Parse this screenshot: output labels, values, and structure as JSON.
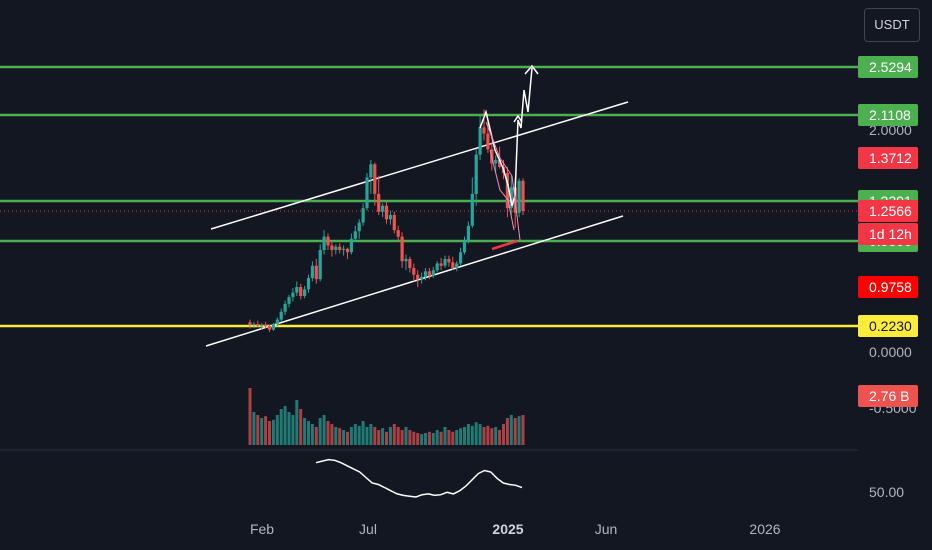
{
  "currency_button": {
    "label": "USDT"
  },
  "chart_data": {
    "type": "candlestick",
    "price_axis": {
      "tick_labels": [
        "2.0000",
        "0.5000",
        "0.0000",
        "-0.5000"
      ],
      "secondary_labels": [
        "50.00"
      ]
    },
    "time_axis": {
      "labels": [
        {
          "text": "Feb",
          "bold": false
        },
        {
          "text": "Jul",
          "bold": false
        },
        {
          "text": "2025",
          "bold": true
        },
        {
          "text": "Jun",
          "bold": false
        },
        {
          "text": "2026",
          "bold": false
        }
      ]
    },
    "horizontal_levels": [
      {
        "value": 2.5294,
        "label": "2.5294",
        "color": "#4caf50"
      },
      {
        "value": 2.1108,
        "label": "2.1108",
        "color": "#4caf50"
      },
      {
        "value": 1.3391,
        "label": "1.3391",
        "color": "#4caf50"
      },
      {
        "value": 0.98,
        "label": "0.9800",
        "color": "#4caf50"
      },
      {
        "value": 0.223,
        "label": "0.2230",
        "color": "#ffeb3b"
      }
    ],
    "badges": [
      {
        "label": "1.3712",
        "color": "#f23645"
      },
      {
        "label": "1.2566",
        "color": "#f23645"
      },
      {
        "label": "1d 12h",
        "color": "#f23645"
      },
      {
        "label": "0.9758",
        "color": "#ff0000"
      },
      {
        "label": "2.76 B",
        "color": "#ef5350"
      }
    ],
    "current_price": 1.2566,
    "colors": {
      "up": "#26a69a",
      "down": "#ef5350",
      "channel": "#ffffff",
      "rsi": "#ffffff"
    },
    "candles": [
      [
        0.255,
        0.28,
        0.2,
        0.235
      ],
      [
        0.235,
        0.26,
        0.205,
        0.24
      ],
      [
        0.24,
        0.27,
        0.215,
        0.225
      ],
      [
        0.225,
        0.25,
        0.195,
        0.23
      ],
      [
        0.23,
        0.26,
        0.2,
        0.225
      ],
      [
        0.225,
        0.235,
        0.17,
        0.19
      ],
      [
        0.19,
        0.25,
        0.18,
        0.24
      ],
      [
        0.24,
        0.3,
        0.22,
        0.28
      ],
      [
        0.28,
        0.38,
        0.26,
        0.35
      ],
      [
        0.35,
        0.45,
        0.32,
        0.42
      ],
      [
        0.42,
        0.5,
        0.39,
        0.48
      ],
      [
        0.48,
        0.56,
        0.44,
        0.52
      ],
      [
        0.52,
        0.62,
        0.49,
        0.57
      ],
      [
        0.57,
        0.6,
        0.46,
        0.49
      ],
      [
        0.49,
        0.58,
        0.47,
        0.55
      ],
      [
        0.55,
        0.68,
        0.52,
        0.65
      ],
      [
        0.65,
        0.8,
        0.62,
        0.76
      ],
      [
        0.76,
        0.82,
        0.6,
        0.64
      ],
      [
        0.64,
        0.95,
        0.62,
        0.9
      ],
      [
        0.9,
        1.08,
        0.86,
        1.02
      ],
      [
        1.02,
        1.05,
        0.9,
        0.94
      ],
      [
        0.94,
        0.98,
        0.84,
        0.9
      ],
      [
        0.9,
        0.95,
        0.86,
        0.93
      ],
      [
        0.93,
        0.96,
        0.87,
        0.9
      ],
      [
        0.9,
        0.94,
        0.85,
        0.91
      ],
      [
        0.91,
        0.92,
        0.82,
        0.88
      ],
      [
        0.88,
        1.05,
        0.86,
        1.0
      ],
      [
        1.0,
        1.12,
        0.97,
        1.07
      ],
      [
        1.07,
        1.18,
        1.0,
        1.15
      ],
      [
        1.15,
        1.32,
        1.12,
        1.28
      ],
      [
        1.28,
        1.45,
        1.26,
        1.4
      ],
      [
        1.4,
        1.6,
        1.35,
        1.55
      ],
      [
        1.55,
        1.57,
        1.3,
        1.35
      ],
      [
        1.35,
        1.42,
        1.22,
        1.25
      ],
      [
        1.25,
        1.32,
        1.2,
        1.3
      ],
      [
        1.3,
        1.34,
        1.14,
        1.18
      ],
      [
        1.18,
        1.26,
        1.13,
        1.22
      ],
      [
        1.22,
        1.25,
        1.05,
        1.08
      ],
      [
        1.08,
        1.12,
        0.98,
        1.02
      ],
      [
        1.02,
        1.06,
        0.74,
        0.8
      ],
      [
        0.8,
        0.86,
        0.72,
        0.82
      ],
      [
        0.82,
        0.84,
        0.7,
        0.74
      ],
      [
        0.74,
        0.78,
        0.62,
        0.68
      ],
      [
        0.68,
        0.72,
        0.57,
        0.64
      ],
      [
        0.64,
        0.7,
        0.6,
        0.66
      ],
      [
        0.66,
        0.74,
        0.63,
        0.71
      ],
      [
        0.71,
        0.74,
        0.64,
        0.67
      ],
      [
        0.67,
        0.75,
        0.65,
        0.72
      ],
      [
        0.72,
        0.8,
        0.7,
        0.78
      ],
      [
        0.78,
        0.83,
        0.72,
        0.76
      ],
      [
        0.76,
        0.85,
        0.74,
        0.82
      ],
      [
        0.82,
        0.85,
        0.75,
        0.79
      ],
      [
        0.79,
        0.84,
        0.72,
        0.74
      ],
      [
        0.74,
        0.8,
        0.71,
        0.78
      ],
      [
        0.78,
        0.92,
        0.76,
        0.88
      ],
      [
        0.88,
        1.02,
        0.86,
        0.98
      ],
      [
        0.98,
        1.16,
        0.96,
        1.12
      ],
      [
        1.12,
        1.4,
        1.1,
        1.35
      ],
      [
        1.35,
        1.72,
        1.3,
        1.66
      ],
      [
        1.66,
        2.1,
        1.6,
        1.97
      ],
      [
        1.97,
        2.16,
        1.82,
        1.9
      ],
      [
        1.9,
        2.05,
        1.68,
        1.72
      ],
      [
        1.72,
        1.8,
        1.48,
        1.56
      ],
      [
        1.56,
        1.65,
        1.46,
        1.6
      ],
      [
        1.6,
        1.75,
        1.5,
        1.52
      ],
      [
        1.52,
        1.6,
        1.38,
        1.45
      ],
      [
        1.45,
        1.52,
        1.2,
        1.28
      ],
      [
        1.28,
        1.42,
        1.22,
        1.36
      ],
      [
        1.36,
        1.4,
        1.1,
        1.24
      ],
      [
        1.24,
        1.39,
        1.2,
        1.37
      ],
      [
        1.37,
        1.39,
        1.22,
        1.2566
      ]
    ],
    "volumes": [
      0.95,
      0.55,
      0.5,
      0.45,
      0.48,
      0.4,
      0.42,
      0.5,
      0.6,
      0.65,
      0.55,
      0.5,
      0.75,
      0.6,
      0.45,
      0.4,
      0.35,
      0.3,
      0.45,
      0.5,
      0.4,
      0.35,
      0.3,
      0.28,
      0.25,
      0.22,
      0.3,
      0.35,
      0.32,
      0.4,
      0.3,
      0.35,
      0.3,
      0.25,
      0.28,
      0.22,
      0.3,
      0.35,
      0.3,
      0.25,
      0.3,
      0.25,
      0.22,
      0.2,
      0.18,
      0.2,
      0.22,
      0.2,
      0.25,
      0.22,
      0.3,
      0.25,
      0.22,
      0.25,
      0.28,
      0.3,
      0.35,
      0.32,
      0.38,
      0.35,
      0.3,
      0.32,
      0.28,
      0.3,
      0.25,
      0.35,
      0.45,
      0.5,
      0.45,
      0.48,
      0.5
    ],
    "rsi": [
      84,
      86,
      88,
      87,
      84,
      80,
      76,
      72,
      65,
      58,
      56,
      52,
      48,
      44,
      42,
      41,
      40,
      43,
      44,
      42,
      43,
      46,
      44,
      48,
      54,
      62,
      70,
      74,
      72,
      64,
      58,
      56,
      55,
      52
    ]
  }
}
